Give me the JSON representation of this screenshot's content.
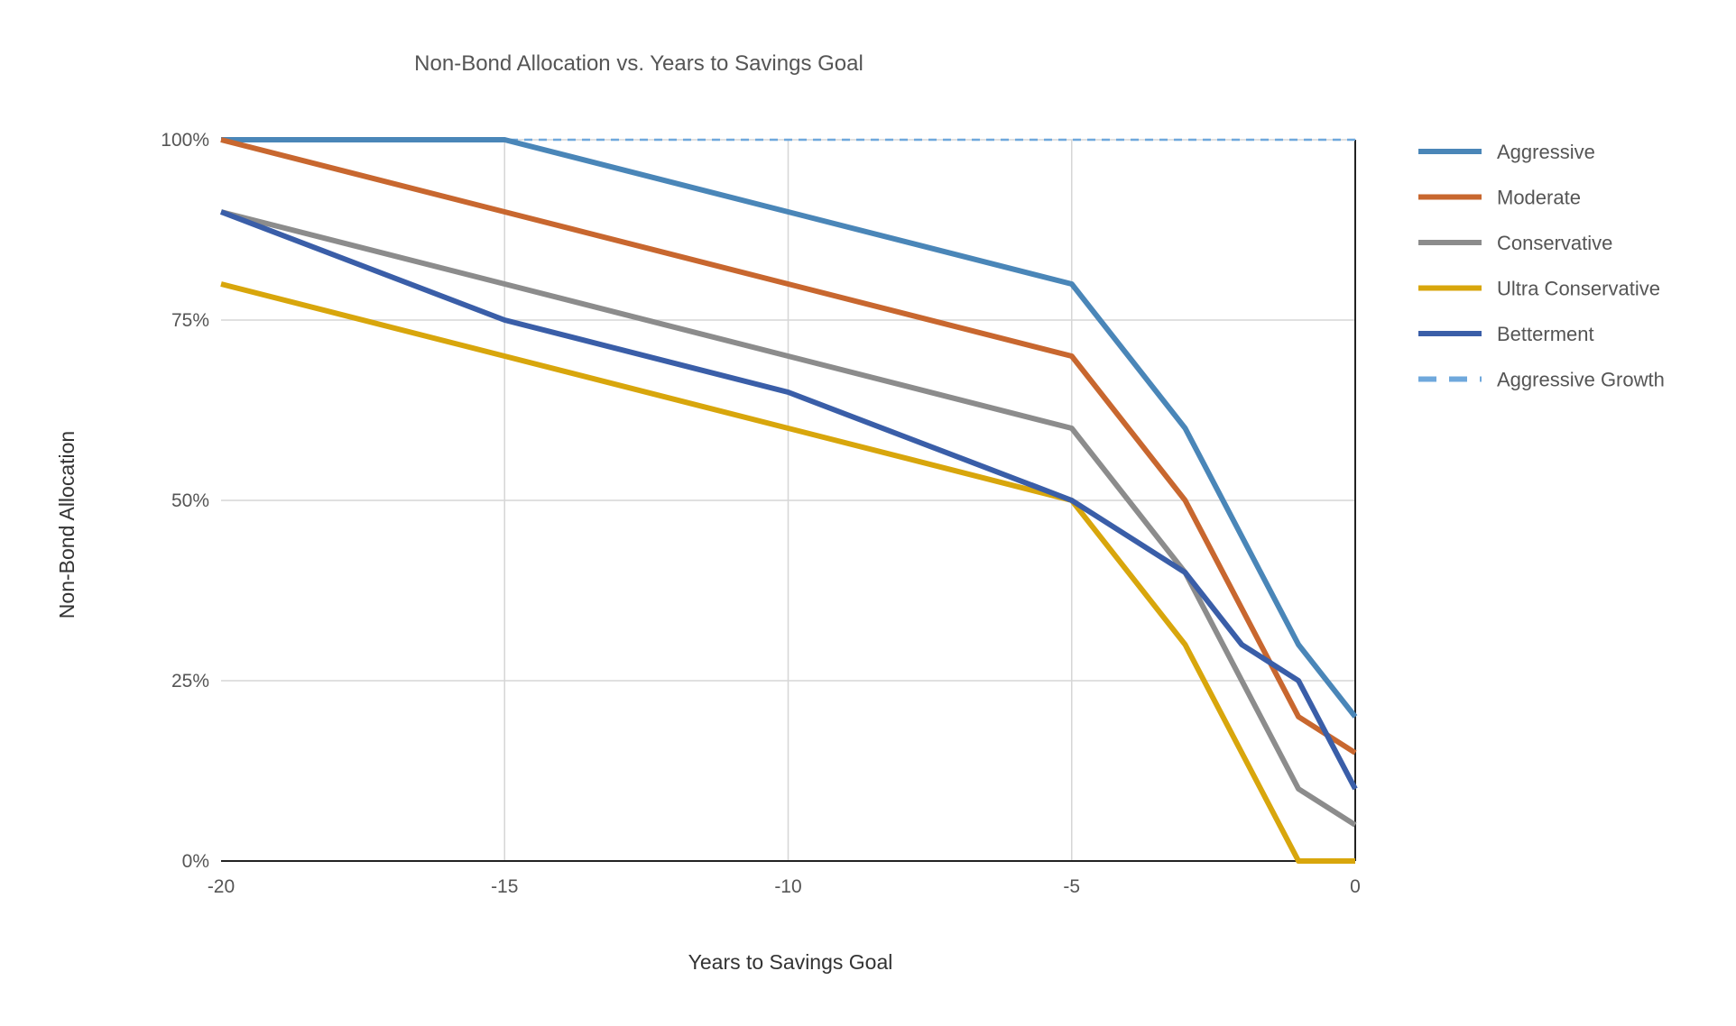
{
  "chart_data": {
    "type": "line",
    "title": "Non-Bond Allocation vs. Years to Savings Goal",
    "xlabel": "Years to Savings Goal",
    "ylabel": "Non-Bond Allocation",
    "xlim": [
      -20,
      0
    ],
    "ylim": [
      0,
      100
    ],
    "x_ticks": [
      -20,
      -15,
      -10,
      -5,
      0
    ],
    "x_tick_labels": [
      "-20",
      "-15",
      "-10",
      "-5",
      "0"
    ],
    "y_ticks": [
      0,
      25,
      50,
      75,
      100
    ],
    "y_tick_labels": [
      "0%",
      "25%",
      "50%",
      "75%",
      "100%"
    ],
    "grid": true,
    "legend_position": "right",
    "series": [
      {
        "name": "Aggressive",
        "color": "#4a86b8",
        "dashed": false,
        "x": [
          -20,
          -15,
          -10,
          -5,
          -3,
          -1,
          0
        ],
        "y": [
          100,
          100,
          90,
          80,
          60,
          30,
          20
        ]
      },
      {
        "name": "Moderate",
        "color": "#c8672f",
        "dashed": false,
        "x": [
          -20,
          -15,
          -10,
          -5,
          -3,
          -1,
          0
        ],
        "y": [
          100,
          90,
          80,
          70,
          50,
          20,
          15
        ]
      },
      {
        "name": "Conservative",
        "color": "#8c8c8c",
        "dashed": false,
        "x": [
          -20,
          -15,
          -10,
          -5,
          -3,
          -1,
          0
        ],
        "y": [
          90,
          80,
          70,
          60,
          40,
          10,
          5
        ]
      },
      {
        "name": "Ultra Conservative",
        "color": "#d8a60c",
        "dashed": false,
        "x": [
          -20,
          -15,
          -10,
          -5,
          -3,
          -1,
          0
        ],
        "y": [
          80,
          70,
          60,
          50,
          30,
          0,
          0
        ]
      },
      {
        "name": "Betterment",
        "color": "#3a5ea8",
        "dashed": false,
        "x": [
          -20,
          -15,
          -10,
          -5,
          -3,
          -2,
          -1,
          0
        ],
        "y": [
          90,
          75,
          65,
          50,
          40,
          30,
          25,
          10
        ]
      },
      {
        "name": "Aggressive Growth",
        "color": "#6fa8dc",
        "dashed": true,
        "x": [
          -20,
          0
        ],
        "y": [
          100,
          100
        ]
      }
    ]
  }
}
